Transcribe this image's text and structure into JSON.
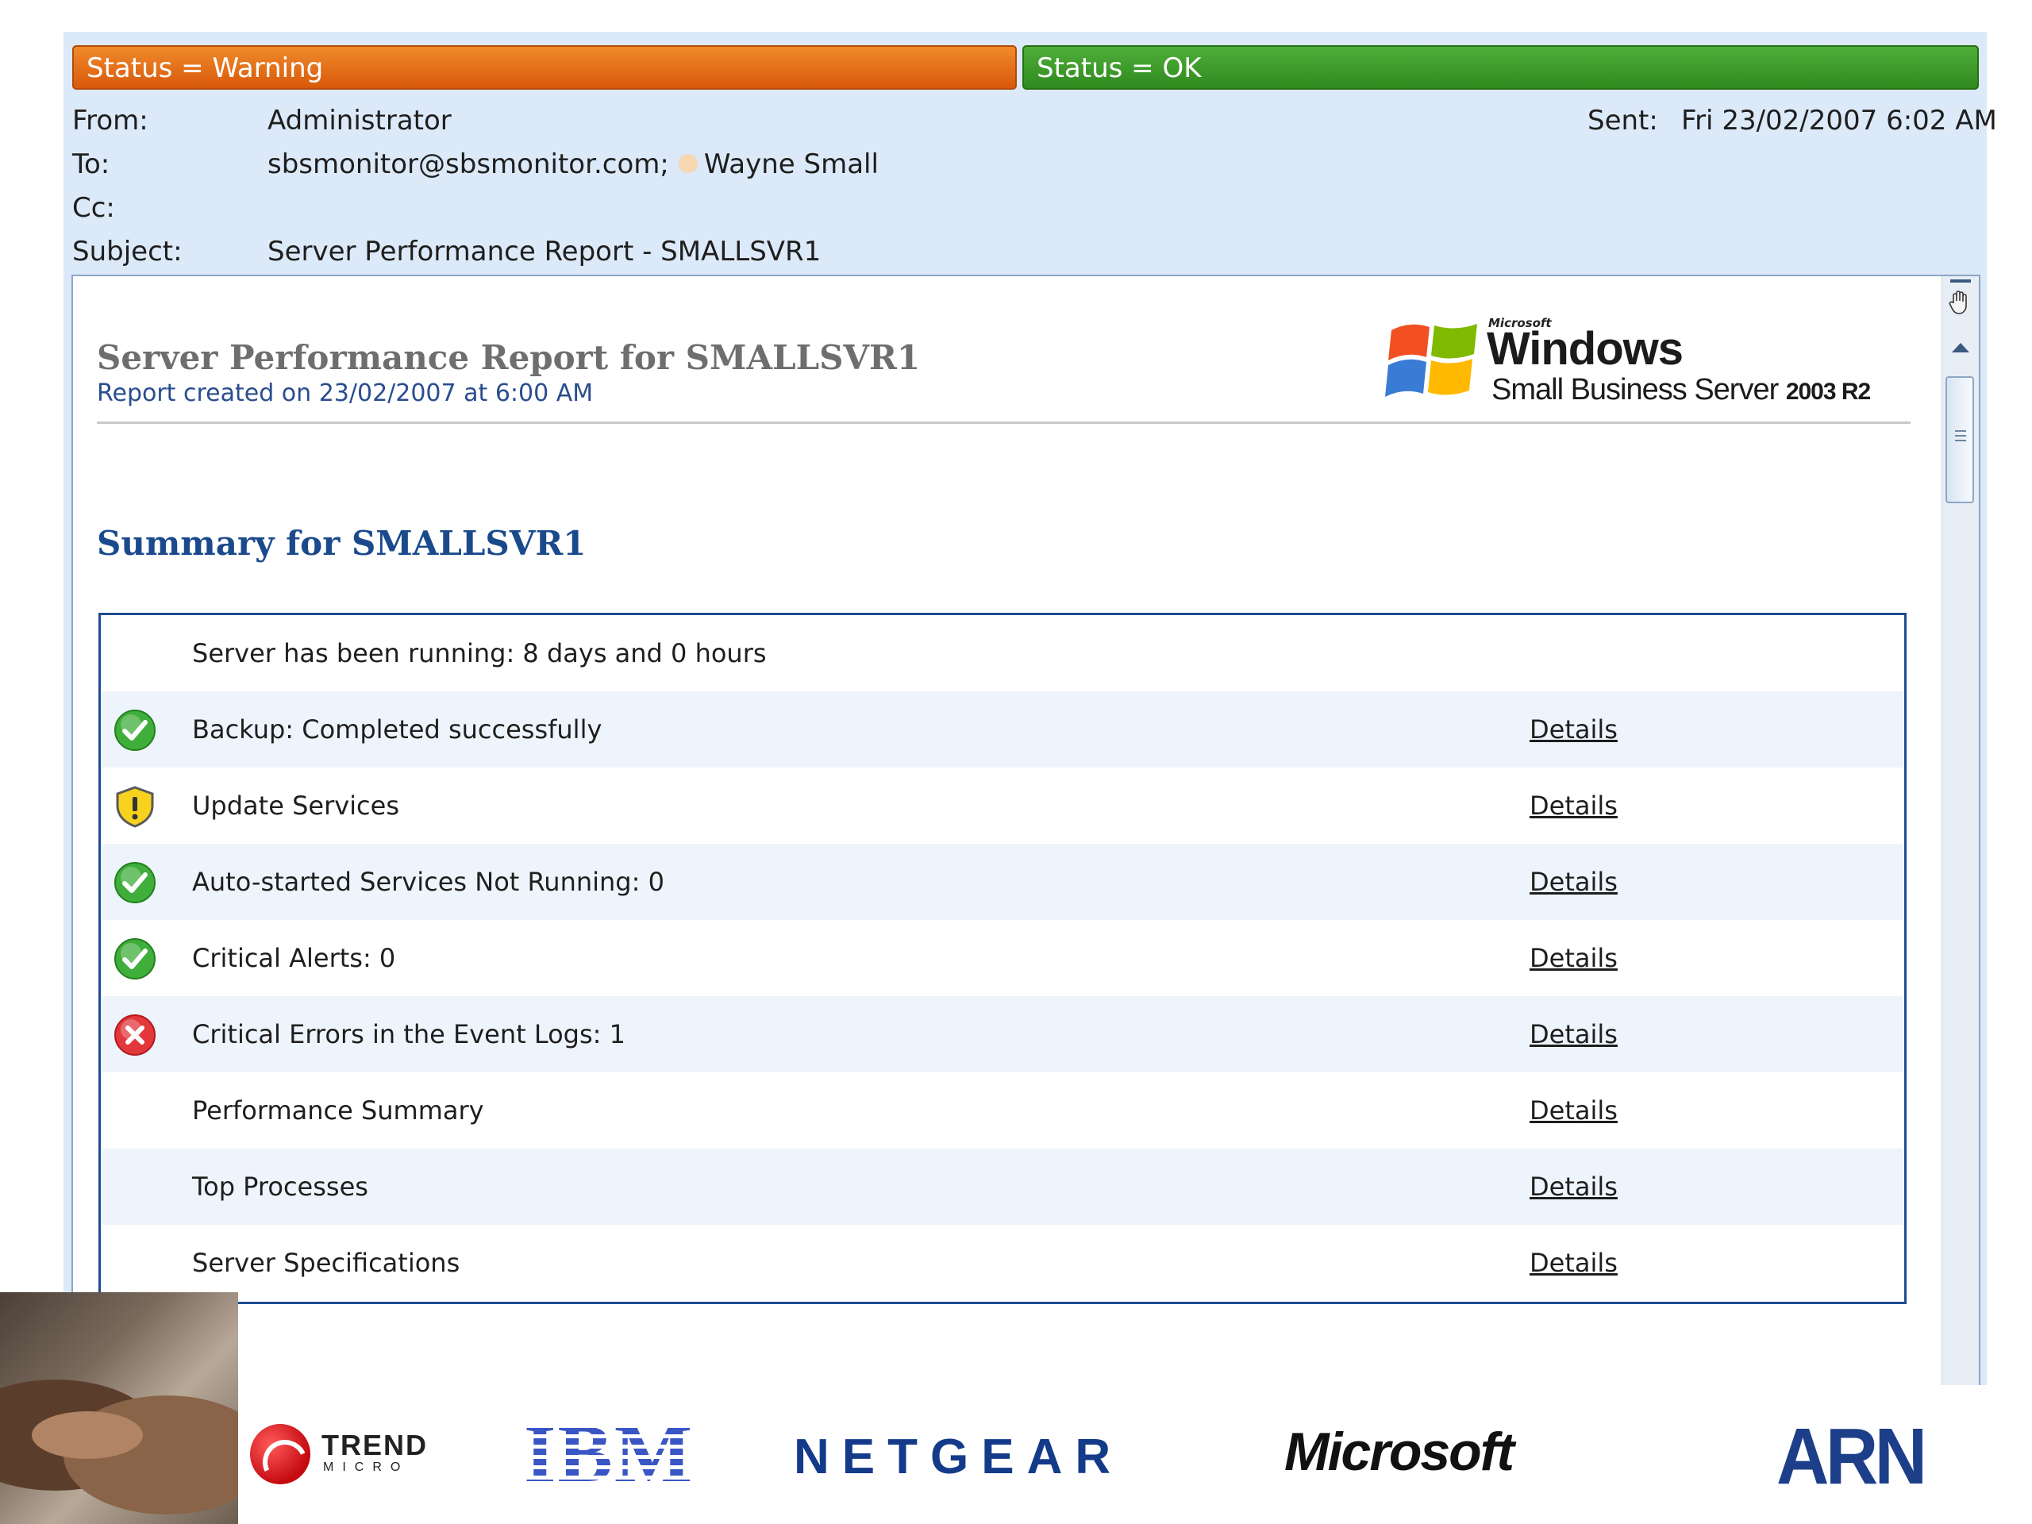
{
  "status": {
    "warning": "Status = Warning",
    "ok": "Status = OK"
  },
  "colors": {
    "warning": "#e8771f",
    "ok": "#3a9a2a",
    "link_blue": "#1b4a8c",
    "table_border": "#1f4d8f"
  },
  "email": {
    "from_label": "From:",
    "from": "Administrator",
    "to_label": "To:",
    "to_address": "sbsmonitor@sbsmonitor.com;",
    "to_contact": "Wayne Small",
    "cc_label": "Cc:",
    "subject_label": "Subject:",
    "subject": "Server Performance Report - SMALLSVR1",
    "sent_label": "Sent:",
    "sent": "Fri 23/02/2007 6:02 AM"
  },
  "report": {
    "title": "Server Performance Report for SMALLSVR1",
    "created": "Report created on 23/02/2007 at 6:00 AM",
    "logo": {
      "microsoft": "Microsoft",
      "windows": "Windows",
      "product": "Small Business Server",
      "version": "2003 R2"
    },
    "summary_title": "Summary for SMALLSVR1",
    "rows": [
      {
        "icon": "none",
        "text": "Server has been running: 8 days and 0 hours",
        "link": ""
      },
      {
        "icon": "ok-check-icon",
        "text": "Backup: Completed successfully",
        "link": "Details"
      },
      {
        "icon": "warning-shield-icon",
        "text": "Update Services",
        "link": "Details"
      },
      {
        "icon": "ok-check-icon",
        "text": "Auto-started Services Not Running: 0",
        "link": "Details"
      },
      {
        "icon": "ok-check-icon",
        "text": "Critical Alerts: 0",
        "link": "Details"
      },
      {
        "icon": "error-x-icon",
        "text": "Critical Errors in the Event Logs: 1",
        "link": "Details"
      },
      {
        "icon": "none",
        "text": "Performance Summary",
        "link": "Details"
      },
      {
        "icon": "none",
        "text": "Top Processes",
        "link": "Details"
      },
      {
        "icon": "none",
        "text": "Server Specifications",
        "link": "Details"
      }
    ]
  },
  "partners": {
    "trend_micro": {
      "word": "TREND",
      "sub": "MICRO"
    },
    "ibm": "IBM",
    "netgear": "NETGEAR",
    "microsoft": "Microsoft",
    "arn": "ARN"
  }
}
